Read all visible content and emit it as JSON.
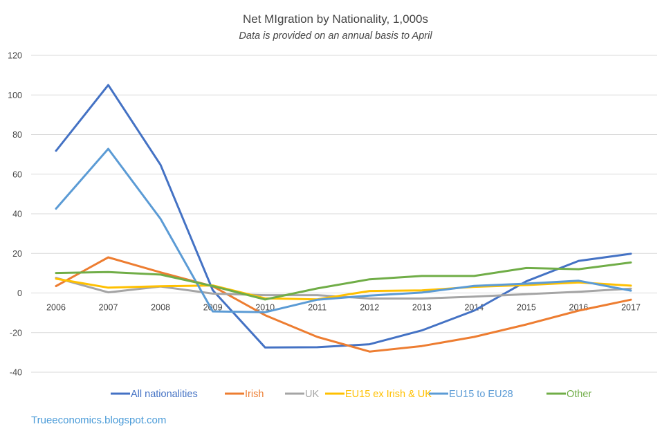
{
  "chart_data": {
    "type": "line",
    "title": "Net MIgration by Nationality, 1,000s",
    "subtitle": "Data is provided on an annual basis to April",
    "xlabel": "",
    "ylabel": "",
    "ylim": [
      -40,
      120
    ],
    "yticks": [
      120,
      100,
      80,
      60,
      40,
      20,
      0,
      -20,
      -40
    ],
    "grid": true,
    "legend_position": "bottom",
    "categories": [
      "2006",
      "2007",
      "2008",
      "2009",
      "2010",
      "2011",
      "2012",
      "2013",
      "2014",
      "2015",
      "2016",
      "2017"
    ],
    "series": [
      {
        "name": "All nationalities",
        "color": "#4472c4",
        "values": [
          71.8,
          105.0,
          64.7,
          1.4,
          -27.5,
          -27.4,
          -25.9,
          -18.9,
          -8.9,
          5.9,
          16.2,
          19.8
        ]
      },
      {
        "name": "Irish",
        "color": "#ed7d31",
        "values": [
          3.5,
          18.0,
          10.4,
          3.4,
          -11.2,
          -22.2,
          -29.6,
          -26.8,
          -22.2,
          -15.9,
          -8.9,
          -3.4
        ]
      },
      {
        "name": "UK",
        "color": "#a5a5a5",
        "values": [
          7.6,
          0.3,
          3.3,
          -0.3,
          -1.1,
          -1.1,
          -2.8,
          -2.8,
          -1.8,
          -0.6,
          0.6,
          2.2
        ]
      },
      {
        "name": "EU15 ex Irish & UK",
        "color": "#ffc000",
        "values": [
          7.2,
          2.7,
          3.4,
          3.8,
          -2.7,
          -3.2,
          1.0,
          1.3,
          3.1,
          4.0,
          5.3,
          3.7
        ]
      },
      {
        "name": "EU15 to EU28",
        "color": "#5b9bd5",
        "values": [
          42.6,
          72.8,
          37.4,
          -9.3,
          -9.7,
          -3.4,
          -1.3,
          0.2,
          3.6,
          4.7,
          6.2,
          1.2
        ]
      },
      {
        "name": "Other",
        "color": "#70ad47",
        "values": [
          10.1,
          10.6,
          9.3,
          3.5,
          -3.3,
          2.3,
          6.9,
          8.6,
          8.6,
          12.6,
          12.0,
          15.4
        ]
      }
    ]
  },
  "legend_text_colors": [
    "#4472c4",
    "#ed7d31",
    "#a5a5a5",
    "#ffc000",
    "#5b9bd5",
    "#70ad47"
  ],
  "credit": "Trueeconomics.blogspot.com"
}
